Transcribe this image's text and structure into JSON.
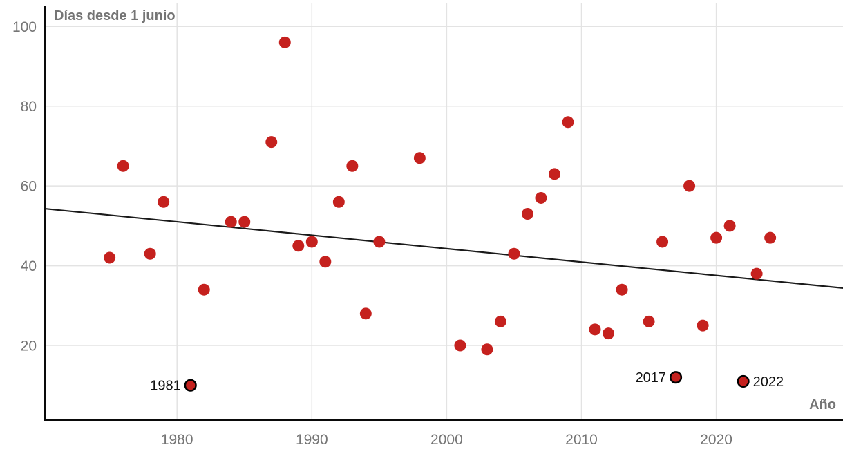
{
  "chart_data": {
    "type": "scatter",
    "title": "Días desde 1 junio",
    "xlabel": "Año",
    "ylabel": "Días desde 1 junio",
    "x_ticks": [
      1980,
      1990,
      2000,
      2010,
      2020
    ],
    "y_ticks": [
      20,
      40,
      60,
      80,
      100
    ],
    "xlim": [
      1970.2,
      2029.4
    ],
    "ylim": [
      1.2,
      104.9
    ],
    "grid": true,
    "legend": "none",
    "points": [
      [
        1975,
        42
      ],
      [
        1976,
        65
      ],
      [
        1978,
        43
      ],
      [
        1979,
        56
      ],
      [
        1982,
        34
      ],
      [
        1984,
        51
      ],
      [
        1985,
        51
      ],
      [
        1987,
        71
      ],
      [
        1988,
        96
      ],
      [
        1989,
        45
      ],
      [
        1990,
        46
      ],
      [
        1991,
        41
      ],
      [
        1992,
        56
      ],
      [
        1993,
        65
      ],
      [
        1994,
        28
      ],
      [
        1995,
        46
      ],
      [
        1998,
        67
      ],
      [
        2001,
        20
      ],
      [
        2003,
        19
      ],
      [
        2004,
        26
      ],
      [
        2005,
        43
      ],
      [
        2006,
        53
      ],
      [
        2007,
        57
      ],
      [
        2008,
        63
      ],
      [
        2009,
        76
      ],
      [
        2011,
        24
      ],
      [
        2012,
        23
      ],
      [
        2013,
        34
      ],
      [
        2015,
        26
      ],
      [
        2016,
        46
      ],
      [
        2018,
        60
      ],
      [
        2019,
        25
      ],
      [
        2020,
        47
      ],
      [
        2021,
        50
      ],
      [
        2023,
        38
      ],
      [
        2024,
        47
      ]
    ],
    "labeled_points": [
      {
        "year": 1981,
        "days": 10,
        "label": "1981",
        "label_side": "left"
      },
      {
        "year": 2017,
        "days": 12,
        "label": "2017",
        "label_side": "left"
      },
      {
        "year": 2022,
        "days": 11,
        "label": "2022",
        "label_side": "right"
      }
    ],
    "trend_line": {
      "x1_year": 1970.2,
      "y1_days": 54.3,
      "x2_year": 2029.4,
      "y2_days": 34.4
    },
    "colors": {
      "point": "#c5211e",
      "labeled_point_stroke": "#000000",
      "trend": "#1a1a1a",
      "grid": "#e3e3e3",
      "axis": "#0a0a0a",
      "tick_label": "#757575",
      "axis_title": "#757575",
      "annotation": "#111111",
      "background": "#ffffff"
    }
  }
}
